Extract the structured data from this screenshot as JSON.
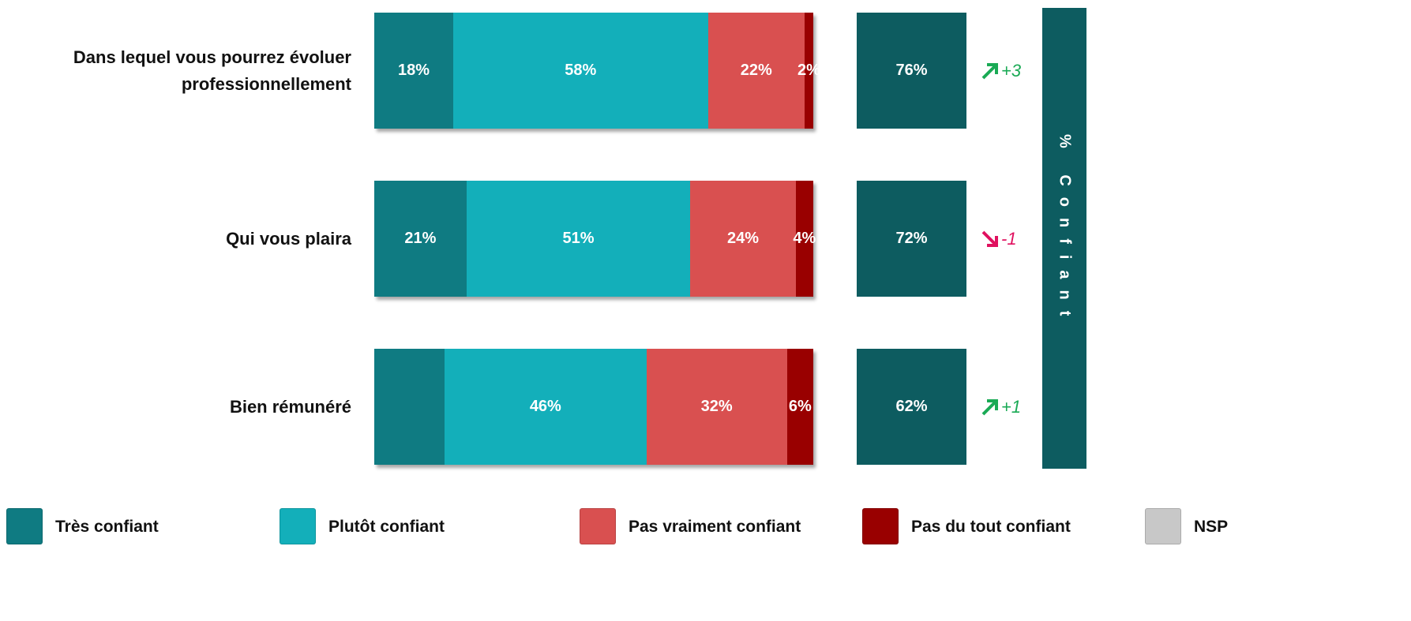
{
  "chart_data": {
    "type": "bar",
    "orientation": "horizontal",
    "stacked": true,
    "xlim": [
      0,
      100
    ],
    "categories": [
      "Dans lequel vous pourrez évoluer professionnellement",
      "Qui vous plaira",
      "Bien rémunéré"
    ],
    "series": [
      {
        "name": "Très confiant",
        "color": "#0f7b82",
        "values": [
          18,
          21,
          16
        ],
        "value_labels": [
          "18%",
          "21%",
          null
        ]
      },
      {
        "name": "Plutôt confiant",
        "color": "#13afba",
        "values": [
          58,
          51,
          46
        ],
        "value_labels": [
          "58%",
          "51%",
          "46%"
        ]
      },
      {
        "name": "Pas vraiment confiant",
        "color": "#d95050",
        "values": [
          22,
          24,
          32
        ],
        "value_labels": [
          "22%",
          "24%",
          "32%"
        ]
      },
      {
        "name": "Pas du tout confiant",
        "color": "#990000",
        "values": [
          2,
          4,
          6
        ],
        "value_labels": [
          "2%",
          "4%",
          "6%"
        ]
      },
      {
        "name": "NSP",
        "color": "#c8c8c8",
        "values": [
          0,
          0,
          0
        ],
        "value_labels": [
          null,
          null,
          null
        ]
      }
    ],
    "totals": {
      "label": "% Confiant",
      "color": "#0d5c60",
      "values": [
        76,
        72,
        62
      ],
      "value_labels": [
        "76%",
        "72%",
        "62%"
      ]
    },
    "deltas": {
      "up_color": "#1aaa55",
      "down_color": "#e0115f",
      "values": [
        3,
        -1,
        1
      ],
      "value_labels": [
        "+3",
        "-1",
        "+1"
      ]
    }
  }
}
